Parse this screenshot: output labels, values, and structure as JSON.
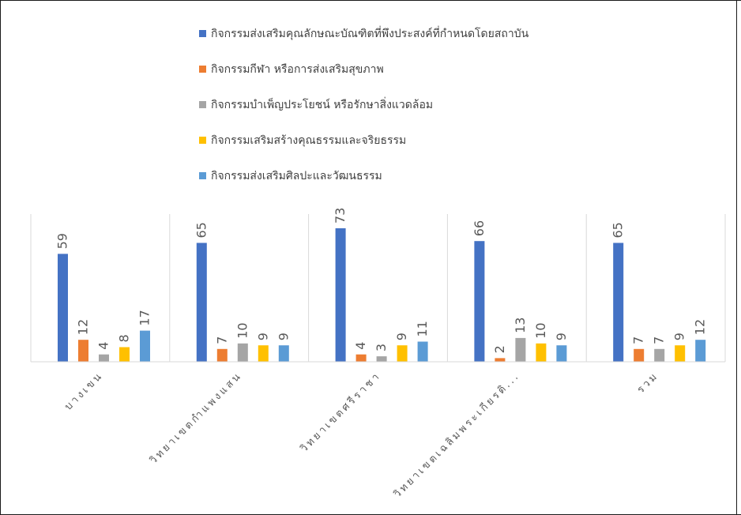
{
  "chart_data": {
    "type": "bar",
    "categories": [
      "บางเขน",
      "วิทยาเขตกำแพงแสน",
      "วิทยาเขตศรีราชา",
      "วิทยาเขตเฉลิมพระเกียรติ...",
      "รวม"
    ],
    "series": [
      {
        "name": "กิจกรรมส่งเสริมคุณลักษณะบัณฑิตที่พึงประสงค์ที่กำหนดโดยสถาบัน",
        "color": "#4472C4",
        "values": [
          59,
          65,
          73,
          66,
          65
        ]
      },
      {
        "name": "กิจกรรมกีฬา หรือการส่งเสริมสุขภาพ",
        "color": "#ED7D31",
        "values": [
          12,
          7,
          4,
          2,
          7
        ]
      },
      {
        "name": "กิจกรรมบำเพ็ญประโยชน์ หรือรักษาสิ่งแวดล้อม",
        "color": "#A5A5A5",
        "values": [
          4,
          10,
          3,
          13,
          7
        ]
      },
      {
        "name": "กิจกรรมเสริมสร้างคุณธรรมและจริยธรรม",
        "color": "#FFC000",
        "values": [
          8,
          9,
          9,
          10,
          9
        ]
      },
      {
        "name": "กิจกรรมส่งเสริมศิลปะและวัฒนธรรม",
        "color": "#5B9BD5",
        "values": [
          17,
          9,
          11,
          9,
          12
        ]
      }
    ],
    "ylim": [
      0,
      73
    ],
    "grid": false,
    "data_labels": true,
    "legend_position": "top",
    "category_separators": true
  }
}
